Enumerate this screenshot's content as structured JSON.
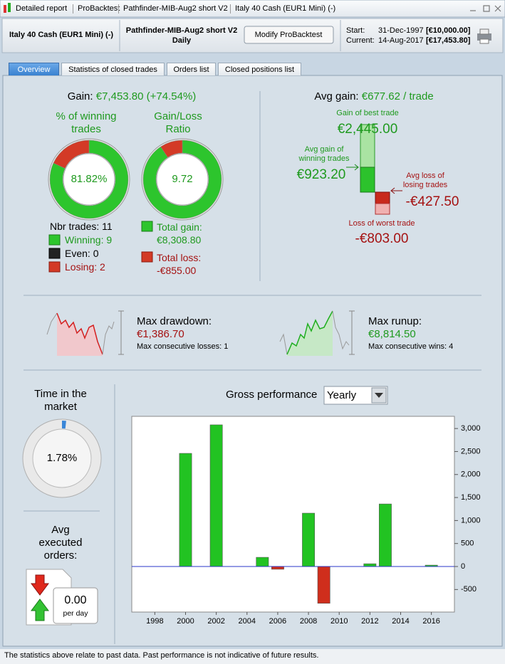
{
  "title_bar": {
    "items": [
      "Detailed report",
      "ProBacktest",
      "Pathfinder-MIB-Aug2 short V2",
      "Italy 40 Cash (EUR1 Mini) (-)"
    ]
  },
  "header": {
    "instrument": "Italy 40 Cash (EUR1 Mini) (-)",
    "system": "Pathfinder-MIB-Aug2 short V2",
    "timeframe": "Daily",
    "button": "Modify ProBacktest",
    "start_label": "Start:",
    "start_date": "31-Dec-1997",
    "start_value": "[€10,000.00]",
    "current_label": "Current:",
    "current_date": "14-Aug-2017",
    "current_value": "[€17,453.80]"
  },
  "tabs": [
    "Overview",
    "Statistics of closed trades",
    "Orders list",
    "Closed positions list"
  ],
  "overview": {
    "gain": {
      "label": "Gain:",
      "value": "€7,453.80 (+74.54%)"
    },
    "winning_title": "% of winning trades",
    "winning_pct": "81.82%",
    "ratio_title": "Gain/Loss Ratio",
    "ratio": "9.72",
    "nbr_trades": {
      "label": "Nbr trades:",
      "count": 11
    },
    "winning": {
      "label": "Winning:",
      "count": 9
    },
    "even": {
      "label": "Even:",
      "count": 0
    },
    "losing": {
      "label": "Losing:",
      "count": 2
    },
    "total_gain": {
      "label": "Total gain:",
      "value": 8308.8,
      "value_label": "€8,308.80"
    },
    "total_loss": {
      "label": "Total loss:",
      "value": -855,
      "value_label": "-€855.00"
    },
    "avg_gain": {
      "label": "Avg gain:",
      "value": "€677.62 / trade"
    },
    "best_trade": {
      "label": "Gain of best trade",
      "value": "€2,445.00"
    },
    "avg_win": {
      "label": "Avg gain of winning trades",
      "value": "€923.20"
    },
    "avg_loss": {
      "label": "Avg loss of losing trades",
      "value": "-€427.50"
    },
    "worst_trade": {
      "label": "Loss of worst trade",
      "value": "-€803.00"
    },
    "drawdown": {
      "label": "Max drawdown:",
      "value": "€1,386.70",
      "detail": "Max consecutive losses: 1"
    },
    "runup": {
      "label": "Max runup:",
      "value": "€8,814.50",
      "detail": "Max consecutive wins: 4"
    },
    "time_in_market": {
      "label": "Time in the market",
      "value": 1.78,
      "value_label": "1.78%"
    },
    "avg_orders": {
      "label": "Avg executed orders:",
      "value": "0.00",
      "unit": "per day"
    },
    "period": "Yearly"
  },
  "chart_data": {
    "type": "bar",
    "title": "Gross performance",
    "x": [
      2000,
      2002,
      2005,
      2006,
      2008,
      2009,
      2012,
      2013,
      2016
    ],
    "values": [
      2460,
      3080,
      200,
      -60,
      1160,
      -800,
      60,
      1360,
      30
    ],
    "positive_color": "#22c322",
    "negative_color": "#cf2e1c",
    "zero_line_color": "#2a35c8",
    "xlim": [
      1996.5,
      2017.5
    ],
    "ylim": [
      -990,
      3265
    ],
    "xticks": [
      1998,
      2000,
      2002,
      2004,
      2006,
      2008,
      2010,
      2012,
      2014,
      2016
    ],
    "yticks": [
      {
        "value": 3000,
        "label": "3,000"
      },
      {
        "value": 2500,
        "label": "2,500"
      },
      {
        "value": 2000,
        "label": "2,000"
      },
      {
        "value": 1500,
        "label": "1,500"
      },
      {
        "value": 1000,
        "label": "1,000"
      },
      500,
      0,
      -500
    ],
    "y_axis_side": "right"
  },
  "footer": "The statistics above relate to past data. Past performance is not indicative of future results."
}
